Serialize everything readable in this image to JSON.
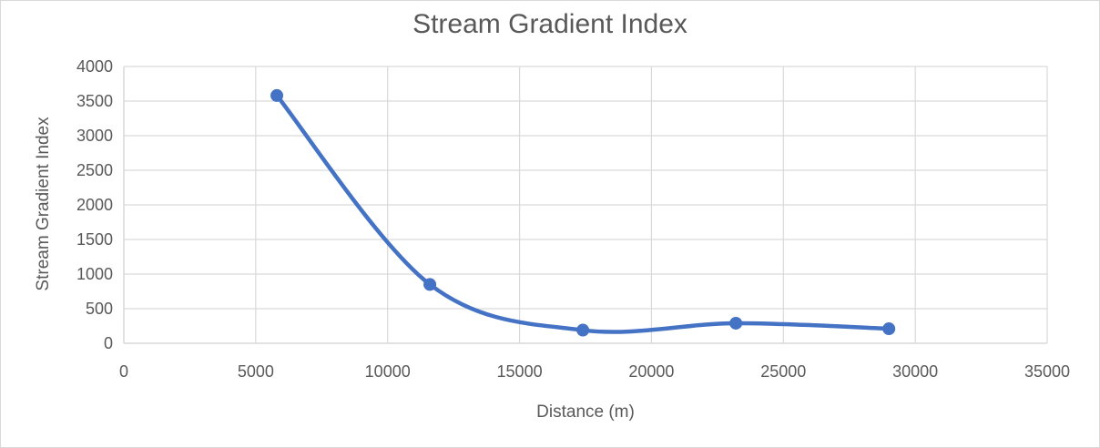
{
  "chart_data": {
    "type": "scatter",
    "title": "Stream Gradient Index",
    "xlabel": "Distance (m)",
    "ylabel": "Stream Gradient Index",
    "xlim": [
      0,
      35000
    ],
    "ylim": [
      0,
      4000
    ],
    "x_ticks": [
      "0",
      "5000",
      "10000",
      "15000",
      "20000",
      "25000",
      "30000",
      "35000"
    ],
    "y_ticks": [
      "0",
      "500",
      "1000",
      "1500",
      "2000",
      "2500",
      "3000",
      "3500",
      "4000"
    ],
    "grid": true,
    "smooth": true,
    "series": [
      {
        "color": "#4472c4",
        "points": [
          {
            "x": 5800,
            "y": 3580
          },
          {
            "x": 11600,
            "y": 850
          },
          {
            "x": 17400,
            "y": 190
          },
          {
            "x": 23200,
            "y": 290
          },
          {
            "x": 29000,
            "y": 210
          }
        ]
      }
    ]
  }
}
